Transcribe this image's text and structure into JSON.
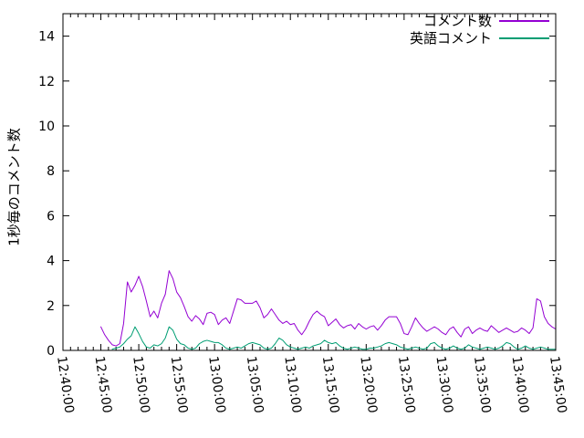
{
  "figure": {
    "background": "#ffffff",
    "border_color": "#000000",
    "text_color": "#000000"
  },
  "legend": {
    "position": "top-right-inside",
    "entries": [
      {
        "label": "コメント数",
        "color": "#9400d3"
      },
      {
        "label": "英語コメント",
        "color": "#009e73"
      }
    ]
  },
  "chart_data": {
    "type": "line",
    "title": "",
    "xlabel": "",
    "ylabel": "1秒毎のコメント数",
    "grid": false,
    "legend_position": "top-right-inside",
    "ylim": [
      0,
      15
    ],
    "ytick_step": 2,
    "ytick_labels": [
      "0",
      "2",
      "4",
      "6",
      "8",
      "10",
      "12",
      "14"
    ],
    "x_axis": {
      "start": "12:40:00",
      "end": "13:45:00",
      "major_tick_seconds": 300,
      "minor_tick_seconds": 60,
      "major_tick_labels": [
        "12:40:00",
        "12:45:00",
        "12:50:00",
        "12:55:00",
        "13:00:00",
        "13:05:00",
        "13:10:00",
        "13:15:00",
        "13:20:00",
        "13:25:00",
        "13:30:00",
        "13:35:00",
        "13:40:00",
        "13:45:00"
      ]
    },
    "series_x_start": "12:45:00",
    "series_x_step_seconds": 30,
    "series": [
      {
        "name": "コメント数",
        "color": "#9400d3",
        "values": [
          1.05,
          0.7,
          0.45,
          0.25,
          0.2,
          0.3,
          1.2,
          3.05,
          2.6,
          2.9,
          3.3,
          2.85,
          2.2,
          1.5,
          1.75,
          1.45,
          2.1,
          2.5,
          3.55,
          3.2,
          2.6,
          2.35,
          1.95,
          1.5,
          1.3,
          1.55,
          1.4,
          1.15,
          1.65,
          1.7,
          1.6,
          1.15,
          1.35,
          1.45,
          1.2,
          1.75,
          2.3,
          2.25,
          2.1,
          2.1,
          2.1,
          2.2,
          1.9,
          1.45,
          1.6,
          1.85,
          1.6,
          1.35,
          1.2,
          1.3,
          1.15,
          1.2,
          0.9,
          0.7,
          0.95,
          1.3,
          1.6,
          1.75,
          1.6,
          1.5,
          1.1,
          1.25,
          1.4,
          1.15,
          1.0,
          1.1,
          1.15,
          0.95,
          1.2,
          1.05,
          0.95,
          1.05,
          1.1,
          0.9,
          1.1,
          1.35,
          1.5,
          1.5,
          1.5,
          1.2,
          0.75,
          0.7,
          1.05,
          1.45,
          1.2,
          1.0,
          0.85,
          0.95,
          1.05,
          0.95,
          0.8,
          0.7,
          0.95,
          1.05,
          0.8,
          0.6,
          0.95,
          1.05,
          0.75,
          0.9,
          1.0,
          0.9,
          0.85,
          1.1,
          0.95,
          0.8,
          0.9,
          1.0,
          0.9,
          0.8,
          0.85,
          1.0,
          0.9,
          0.75,
          1.0,
          2.3,
          2.2,
          1.5,
          1.2,
          1.05,
          0.95
        ]
      },
      {
        "name": "英語コメント",
        "color": "#009e73",
        "values": [
          null,
          null,
          null,
          0.05,
          0.1,
          0.15,
          0.3,
          0.5,
          0.65,
          1.05,
          0.75,
          0.4,
          0.15,
          0.1,
          0.25,
          0.2,
          0.3,
          0.55,
          1.05,
          0.9,
          0.5,
          0.3,
          0.25,
          0.1,
          0.05,
          0.1,
          0.3,
          0.4,
          0.45,
          0.4,
          0.35,
          0.35,
          0.25,
          0.1,
          0.05,
          0.1,
          0.15,
          0.1,
          0.2,
          0.3,
          0.35,
          0.3,
          0.25,
          0.1,
          0.05,
          0.1,
          0.3,
          0.55,
          0.45,
          0.25,
          0.15,
          0.1,
          0.05,
          0.1,
          0.15,
          0.1,
          0.2,
          0.25,
          0.3,
          0.45,
          0.35,
          0.3,
          0.35,
          0.2,
          0.1,
          0.05,
          0.1,
          0.15,
          0.1,
          0.05,
          0.05,
          0.1,
          0.1,
          0.15,
          0.2,
          0.3,
          0.35,
          0.3,
          0.25,
          0.15,
          0.1,
          0.05,
          0.1,
          0.15,
          0.1,
          0.05,
          0.1,
          0.3,
          0.35,
          0.2,
          0.1,
          0.05,
          0.1,
          0.2,
          0.1,
          0.05,
          0.1,
          0.25,
          0.15,
          0.1,
          0.05,
          0.1,
          0.15,
          0.1,
          0.05,
          0.1,
          0.2,
          0.35,
          0.3,
          0.15,
          0.05,
          0.1,
          0.2,
          0.1,
          0.05,
          0.1,
          0.15,
          0.1,
          0.05,
          0.05,
          0.05
        ]
      }
    ]
  }
}
